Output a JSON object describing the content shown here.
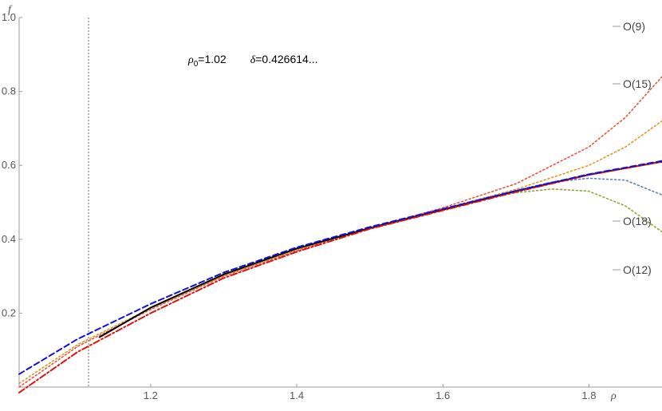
{
  "chart_data": {
    "type": "line",
    "xlabel": "ρ",
    "ylabel": "f",
    "xlim": [
      1.02,
      1.9
    ],
    "ylim": [
      0,
      1.0
    ],
    "xticks": [
      "1.2",
      "1.4",
      "1.6",
      "1.8"
    ],
    "yticks": [
      "0.2",
      "0.4",
      "0.6",
      "0.8",
      "1.0"
    ],
    "annotation": {
      "rho0_symbol": "ρ",
      "rho0_sub": "0",
      "rho0_value": "=1.02",
      "delta_symbol": "δ",
      "delta_value": "=0.426614..."
    },
    "reference_line": {
      "x": 1.115,
      "color": "#9e9e9e"
    },
    "series": [
      {
        "name": "",
        "color": "#000000",
        "style": "solid",
        "x": [
          1.13,
          1.2,
          1.3,
          1.4,
          1.5,
          1.6,
          1.7,
          1.8,
          1.9
        ],
        "y": [
          0.135,
          0.215,
          0.305,
          0.375,
          0.43,
          0.48,
          0.53,
          0.575,
          0.61
        ]
      },
      {
        "name": "",
        "color": "#1010e0",
        "style": "dashed",
        "x": [
          1.02,
          1.1,
          1.2,
          1.3,
          1.4,
          1.5,
          1.6,
          1.7,
          1.8,
          1.9
        ],
        "y": [
          0.035,
          0.13,
          0.225,
          0.31,
          0.378,
          0.433,
          0.482,
          0.531,
          0.576,
          0.612
        ]
      },
      {
        "name": "",
        "color": "#e01010",
        "style": "dashdot",
        "x": [
          1.02,
          1.1,
          1.2,
          1.3,
          1.4,
          1.5,
          1.6,
          1.7,
          1.8,
          1.9
        ],
        "y": [
          -0.015,
          0.095,
          0.2,
          0.295,
          0.366,
          0.428,
          0.478,
          0.528,
          0.574,
          0.61
        ]
      },
      {
        "name": "O(9)",
        "color": "#e8553a",
        "style": "dotted",
        "x": [
          1.02,
          1.1,
          1.2,
          1.3,
          1.4,
          1.5,
          1.6,
          1.7,
          1.8,
          1.85,
          1.9,
          1.94
        ],
        "y": [
          0.0,
          0.11,
          0.21,
          0.3,
          0.37,
          0.43,
          0.485,
          0.55,
          0.65,
          0.73,
          0.84,
          0.99
        ]
      },
      {
        "name": "O(15)",
        "color": "#dd9a20",
        "style": "dotted",
        "x": [
          1.02,
          1.1,
          1.2,
          1.3,
          1.4,
          1.5,
          1.6,
          1.7,
          1.8,
          1.85,
          1.9,
          1.94
        ],
        "y": [
          0.01,
          0.115,
          0.213,
          0.302,
          0.372,
          0.43,
          0.482,
          0.535,
          0.6,
          0.65,
          0.72,
          0.82
        ]
      },
      {
        "name": "O(18)",
        "color": "#5b7fb8",
        "style": "dotted",
        "x": [
          1.6,
          1.7,
          1.75,
          1.8,
          1.85,
          1.9,
          1.94
        ],
        "y": [
          0.48,
          0.532,
          0.555,
          0.565,
          0.56,
          0.52,
          0.46
        ]
      },
      {
        "name": "O(12)",
        "color": "#8fa833",
        "style": "dotted",
        "x": [
          1.6,
          1.65,
          1.7,
          1.75,
          1.8,
          1.85,
          1.9,
          1.94
        ],
        "y": [
          0.48,
          0.508,
          0.526,
          0.536,
          0.53,
          0.49,
          0.42,
          0.34
        ]
      }
    ]
  }
}
